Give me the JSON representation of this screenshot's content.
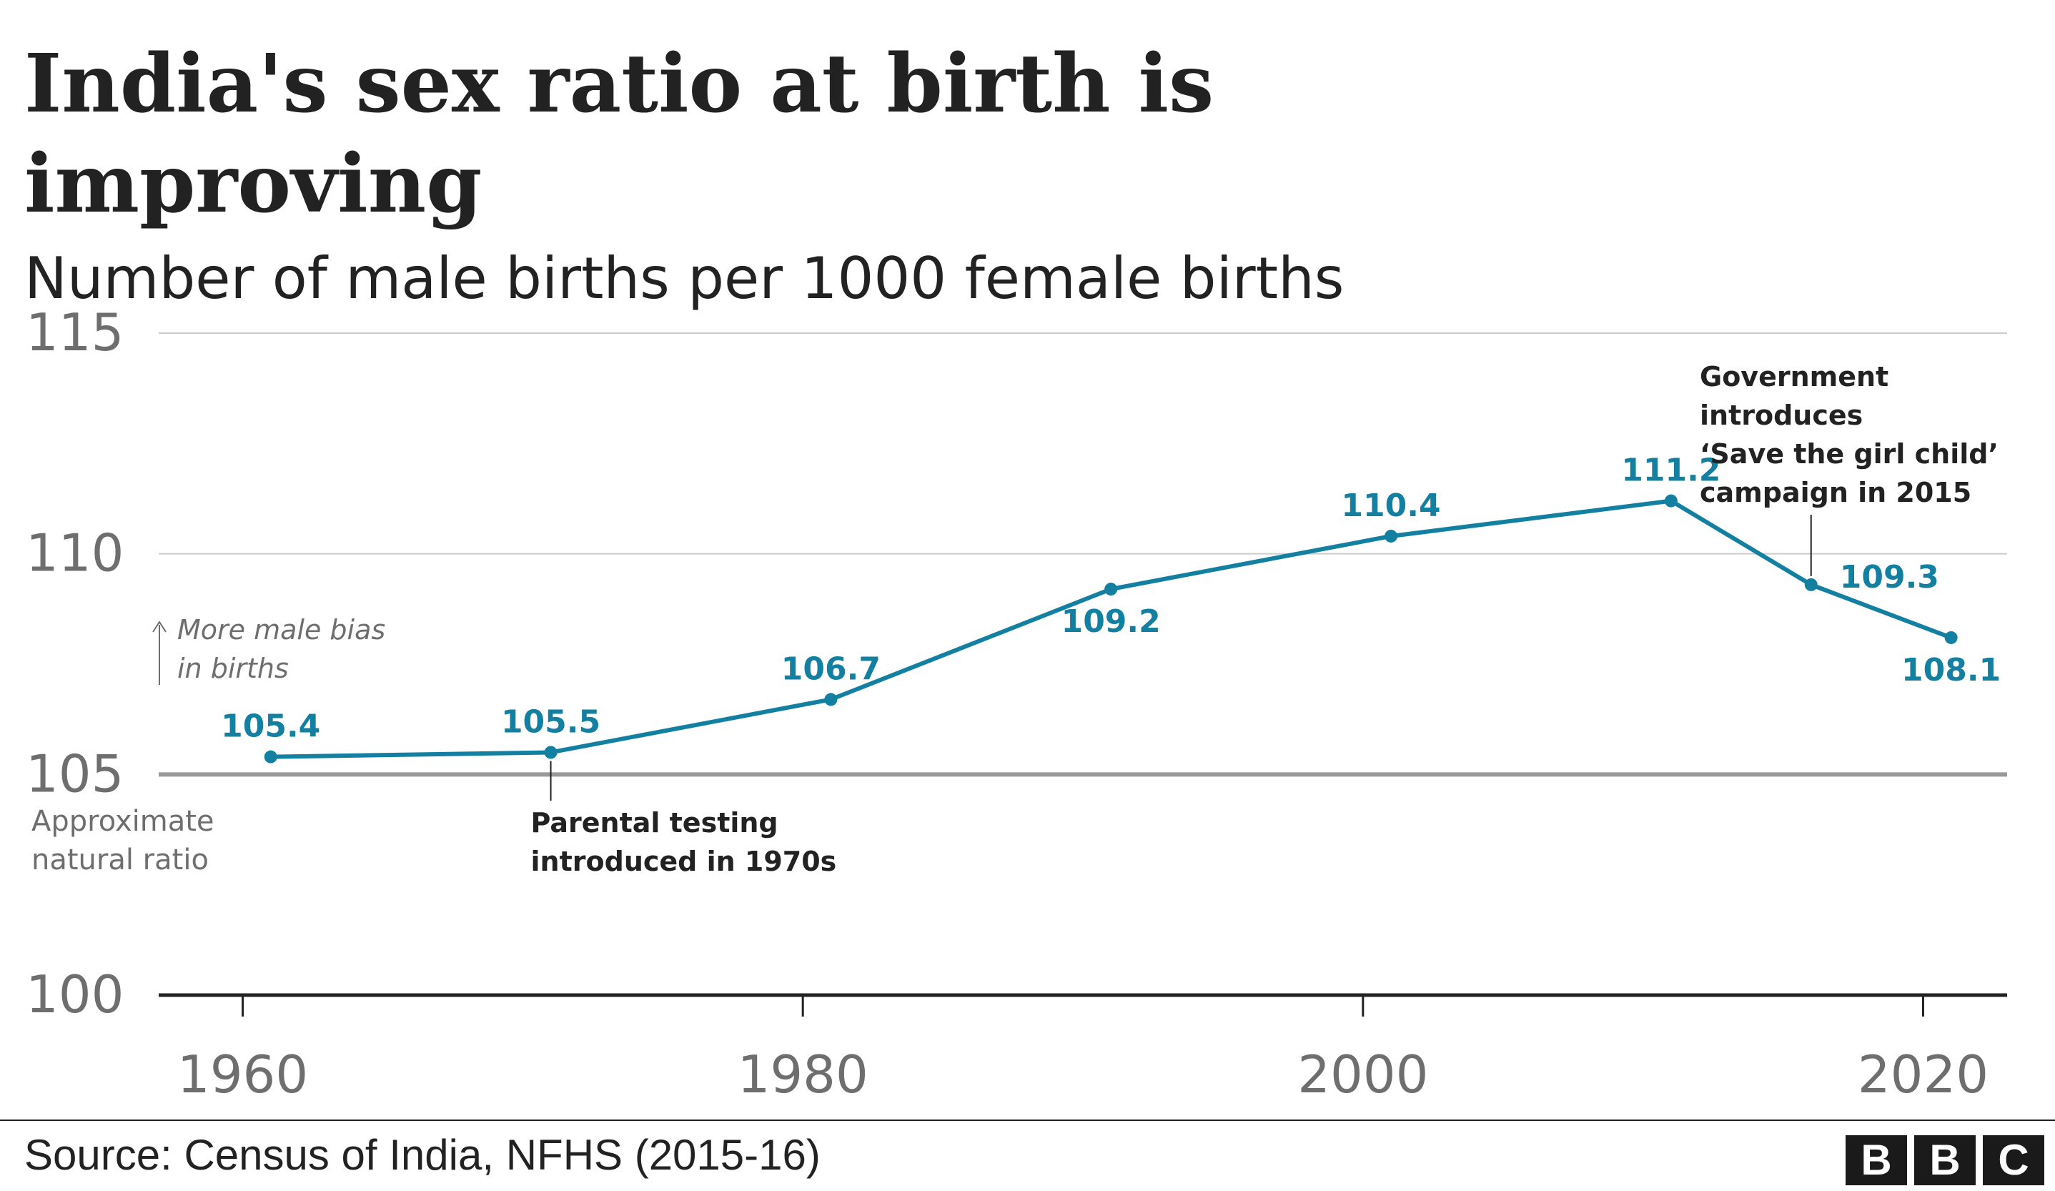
{
  "header": {
    "title": "India's sex ratio at birth is improving",
    "subtitle": "Number of male births per 1000 female births"
  },
  "footer": {
    "source": "Source: Census of India, NFHS (2015-16)",
    "logo_letters": [
      "B",
      "B",
      "C"
    ]
  },
  "colors": {
    "series": "#1380a1",
    "text": "#222222",
    "axis_text": "#6e6e6e",
    "gridline": "#cccccc",
    "reference_line": "#999999"
  },
  "chart_data": {
    "type": "line",
    "title": "India's sex ratio at birth is improving",
    "subtitle": "Number of male births per 1000 female births",
    "xlabel": "",
    "ylabel": "",
    "xlim": [
      1957,
      2023
    ],
    "ylim": [
      100,
      115
    ],
    "x_ticks": [
      1960,
      1980,
      2000,
      2020
    ],
    "y_ticks": [
      100,
      105,
      110,
      115
    ],
    "grid": true,
    "legend": "none",
    "series": [
      {
        "x": [
          1961,
          1971,
          1981,
          1991,
          2001,
          2011,
          2016,
          2021
        ],
        "y": [
          105.4,
          105.5,
          106.7,
          109.2,
          110.4,
          111.2,
          109.3,
          108.1
        ],
        "labels": [
          "105.4",
          "105.5",
          "106.7",
          "109.2",
          "110.4",
          "111.2",
          "109.3",
          "108.1"
        ]
      }
    ],
    "reference_line": {
      "y": 105,
      "label": [
        "Approximate",
        "natural ratio"
      ]
    },
    "bias_note": [
      "More male bias",
      "in births"
    ],
    "annotations": [
      {
        "x": 1971,
        "text": [
          "Parental testing",
          "introduced in 1970s"
        ]
      },
      {
        "x": 2016,
        "text": [
          "Government",
          "introduces",
          "‘Save the girl child’",
          "campaign in 2015"
        ]
      }
    ]
  }
}
